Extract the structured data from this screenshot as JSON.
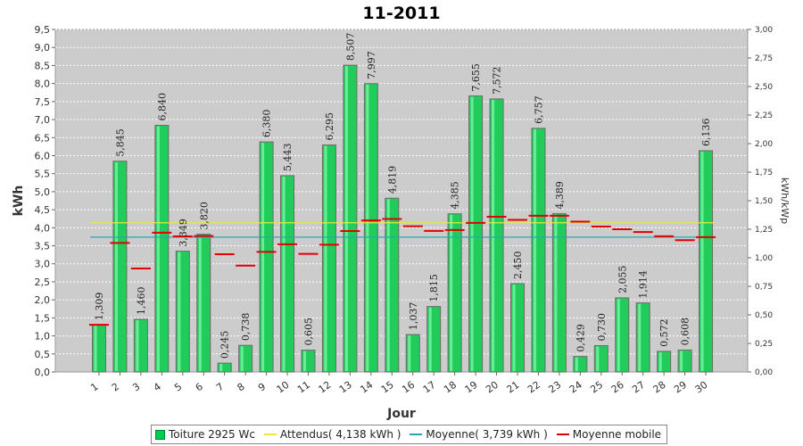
{
  "chart_data": {
    "type": "bar",
    "title": "11-2011",
    "xlabel": "Jour",
    "ylabel": "kWh",
    "y2label": "kWh/kWp",
    "ylim": [
      0,
      9.5
    ],
    "y2lim": [
      0,
      3.0
    ],
    "yticks": [
      "0,0",
      "0,5",
      "1,0",
      "1,5",
      "2,0",
      "2,5",
      "3,0",
      "3,5",
      "4,0",
      "4,5",
      "5,0",
      "5,5",
      "6,0",
      "6,5",
      "7,0",
      "7,5",
      "8,0",
      "8,5",
      "9,0",
      "9,5"
    ],
    "y2ticks": [
      "0,00",
      "0,25",
      "0,50",
      "0,75",
      "1,00",
      "1,25",
      "1,50",
      "1,75",
      "2,00",
      "2,25",
      "2,50",
      "2,75",
      "3,00"
    ],
    "categories": [
      "1",
      "2",
      "3",
      "4",
      "5",
      "6",
      "7",
      "8",
      "9",
      "10",
      "11",
      "12",
      "13",
      "14",
      "15",
      "16",
      "17",
      "18",
      "19",
      "20",
      "21",
      "22",
      "23",
      "24",
      "25",
      "26",
      "27",
      "28",
      "29",
      "30"
    ],
    "grid": true,
    "legend_position": "bottom",
    "series": [
      {
        "name": "Toiture 2925 Wc",
        "kind": "bar",
        "color": "#00cc55",
        "values": [
          1.309,
          5.845,
          1.46,
          6.84,
          3.349,
          3.82,
          0.245,
          0.738,
          6.38,
          5.443,
          0.605,
          6.295,
          8.507,
          7.997,
          4.819,
          1.037,
          1.815,
          4.385,
          7.655,
          7.572,
          2.45,
          6.757,
          4.389,
          0.429,
          0.73,
          2.055,
          1.914,
          0.572,
          0.608,
          6.136
        ],
        "labels": [
          "1,309",
          "5,845",
          "1,460",
          "6,840",
          "3,349",
          "3,820",
          "0,245",
          "0,738",
          "6,380",
          "5,443",
          "0,605",
          "6,295",
          "8,507",
          "7,997",
          "4,819",
          "1,037",
          "1,815",
          "4,385",
          "7,655",
          "7,572",
          "2,450",
          "6,757",
          "4,389",
          "0,429",
          "0,730",
          "2,055",
          "1,914",
          "0,572",
          "0,608",
          "6,136"
        ]
      },
      {
        "name": "Attendus( 4,138 kWh )",
        "kind": "hline",
        "color": "#e8e840",
        "value": 4.138
      },
      {
        "name": "Moyenne( 3,739 kWh )",
        "kind": "hline",
        "color": "#20a8b8",
        "value": 3.739
      },
      {
        "name": "Moyenne mobile",
        "kind": "steps",
        "color": "#e00000",
        "values": [
          1.309,
          3.577,
          2.871,
          3.864,
          3.761,
          3.77,
          3.266,
          2.95,
          3.331,
          3.542,
          3.275,
          3.527,
          3.91,
          4.202,
          4.243,
          4.042,
          3.911,
          3.937,
          4.134,
          4.306,
          4.217,
          4.331,
          4.333,
          4.17,
          4.033,
          3.957,
          3.881,
          3.763,
          3.654,
          3.739
        ]
      }
    ]
  }
}
